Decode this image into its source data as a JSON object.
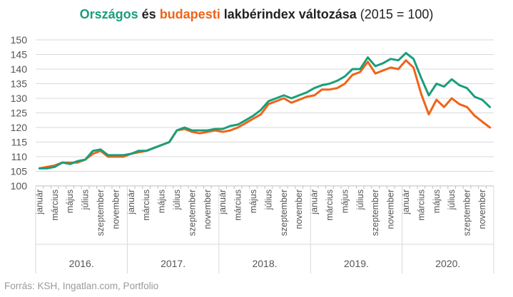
{
  "title": {
    "part1": "Országos",
    "part2": " és ",
    "part3": "budapesti",
    "part4": " lakbérindex változása",
    "part5": " (2015 = 100)"
  },
  "source": "Forrás: KSH, Ingatlan.com, Portfolio",
  "colors": {
    "orszagos": "#1a9e7a",
    "budapesti": "#f06318",
    "grid": "#d9d9d9",
    "axis_text": "#555555"
  },
  "chart_data": {
    "type": "line",
    "title": "Országos és budapesti lakbérindex változása (2015 = 100)",
    "xlabel": "",
    "ylabel": "",
    "ylim": [
      100,
      150
    ],
    "yticks": [
      100,
      105,
      110,
      115,
      120,
      125,
      130,
      135,
      140,
      145,
      150
    ],
    "grid": true,
    "years": [
      "2016.",
      "2017.",
      "2018.",
      "2019.",
      "2020."
    ],
    "month_labels": [
      "január",
      "március",
      "május",
      "július",
      "szeptember",
      "november"
    ],
    "series": [
      {
        "key": "orszagos",
        "values": [
          106,
          106,
          106.5,
          108,
          107.5,
          108.5,
          109,
          112,
          112.5,
          110.5,
          110.5,
          110.5,
          111,
          112,
          112,
          113,
          114,
          115,
          119,
          120,
          119,
          119,
          119,
          119.5,
          119.5,
          120.5,
          121,
          122.5,
          124,
          126,
          129,
          130,
          131,
          130,
          131,
          132,
          133.5,
          134.5,
          135,
          136,
          137.5,
          140,
          140,
          144,
          141,
          142,
          143.5,
          143,
          145.5,
          143.5,
          137,
          131,
          135,
          134,
          136.5,
          134.5,
          133.5,
          130.5,
          129.5,
          127
        ]
      },
      {
        "key": "budapesti",
        "values": [
          106,
          106.5,
          107,
          108,
          108,
          108,
          109,
          111,
          112,
          110,
          110,
          110,
          111,
          111.5,
          112,
          113,
          114,
          115,
          119,
          119.5,
          118.5,
          118,
          118.5,
          119,
          118.5,
          119,
          120,
          121.5,
          123,
          124.5,
          128,
          129,
          130,
          128.5,
          129.5,
          130.5,
          131,
          133,
          133,
          133.5,
          135,
          138,
          139,
          142.5,
          138.5,
          139.5,
          140.5,
          140,
          143,
          140.5,
          131.5,
          124.5,
          129.5,
          127,
          130,
          128,
          127,
          124,
          122,
          120
        ]
      }
    ]
  }
}
